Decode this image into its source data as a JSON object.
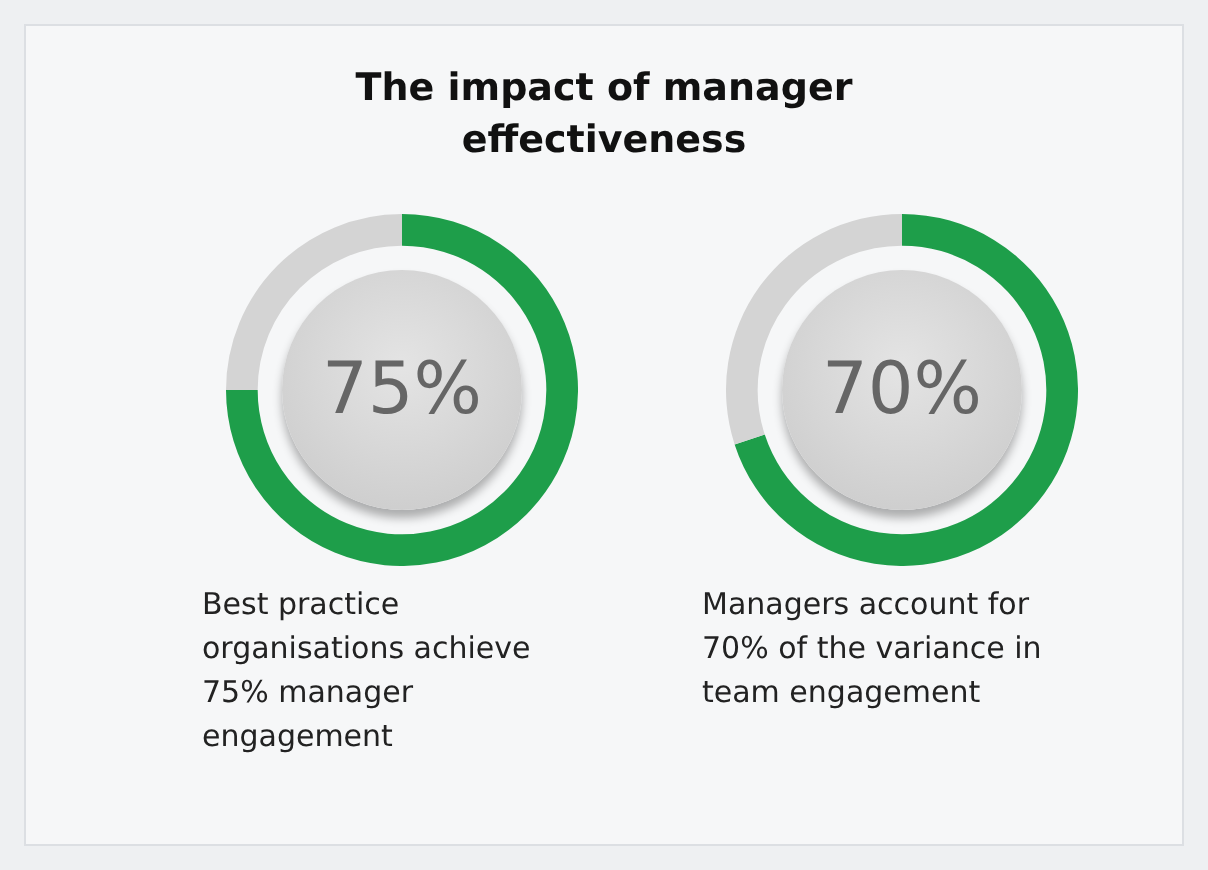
{
  "chart_data": [
    {
      "type": "donut",
      "title": "The impact of manager effectiveness",
      "categories": [
        null,
        null
      ],
      "values": [
        75,
        25
      ],
      "colors": [
        "#1e9e4a",
        "#d4d4d4"
      ],
      "value_labels": [
        "75%",
        null
      ],
      "annotations": [
        "Best practice organisations achieve 75% manager engagement"
      ]
    },
    {
      "type": "donut",
      "categories": [
        null,
        null
      ],
      "values": [
        70,
        30
      ],
      "colors": [
        "#1e9e4a",
        "#d4d4d4"
      ],
      "value_labels": [
        "70%",
        null
      ],
      "annotations": [
        "Managers account for 70% of the variance in team engagement"
      ]
    }
  ]
}
